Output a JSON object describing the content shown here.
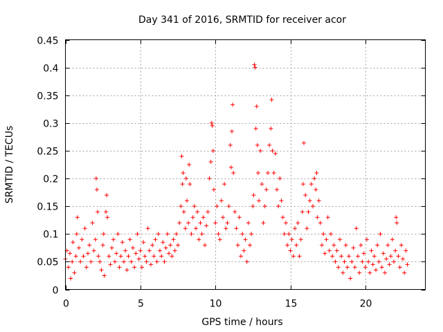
{
  "chart_data": {
    "type": "scatter",
    "title": "Day 341 of 2016, SRMTID for receiver acor",
    "xlabel": "GPS time / hours",
    "ylabel": "SRMTID / TECUs",
    "xlim": [
      0,
      24
    ],
    "ylim": [
      0,
      0.45
    ],
    "xticks": [
      0,
      5,
      10,
      15,
      20
    ],
    "yticks": [
      0,
      0.05,
      0.1,
      0.15,
      0.2,
      0.25,
      0.3,
      0.35,
      0.4,
      0.45
    ],
    "xtick_labels": [
      "0",
      "5",
      "10",
      "15",
      "20"
    ],
    "ytick_labels": [
      "0",
      "0.05",
      "0.1",
      "0.15",
      "0.2",
      "0.25",
      "0.3",
      "0.35",
      "0.4",
      "0.45"
    ],
    "grid": true,
    "marker": "+",
    "color": "#ff0000",
    "series": [
      {
        "name": "SRMTID",
        "points": [
          [
            0.0,
            0.055
          ],
          [
            0.1,
            0.07
          ],
          [
            0.2,
            0.04
          ],
          [
            0.3,
            0.065
          ],
          [
            0.35,
            0.02
          ],
          [
            0.45,
            0.05
          ],
          [
            0.5,
            0.085
          ],
          [
            0.6,
            0.03
          ],
          [
            0.7,
            0.06
          ],
          [
            0.75,
            0.1
          ],
          [
            0.8,
            0.13
          ],
          [
            0.9,
            0.075
          ],
          [
            1.0,
            0.05
          ],
          [
            1.1,
            0.09
          ],
          [
            1.2,
            0.06
          ],
          [
            1.3,
            0.11
          ],
          [
            1.4,
            0.04
          ],
          [
            1.5,
            0.065
          ],
          [
            1.6,
            0.08
          ],
          [
            1.7,
            0.05
          ],
          [
            1.8,
            0.12
          ],
          [
            1.9,
            0.07
          ],
          [
            2.0,
            0.09
          ],
          [
            2.05,
            0.2
          ],
          [
            2.1,
            0.18
          ],
          [
            2.15,
            0.14
          ],
          [
            2.2,
            0.06
          ],
          [
            2.3,
            0.05
          ],
          [
            2.4,
            0.035
          ],
          [
            2.5,
            0.08
          ],
          [
            2.55,
            0.1
          ],
          [
            2.6,
            0.025
          ],
          [
            2.7,
            0.14
          ],
          [
            2.75,
            0.17
          ],
          [
            2.8,
            0.13
          ],
          [
            2.9,
            0.06
          ],
          [
            3.0,
            0.045
          ],
          [
            3.1,
            0.075
          ],
          [
            3.2,
            0.09
          ],
          [
            3.3,
            0.05
          ],
          [
            3.4,
            0.065
          ],
          [
            3.5,
            0.1
          ],
          [
            3.6,
            0.04
          ],
          [
            3.7,
            0.06
          ],
          [
            3.8,
            0.085
          ],
          [
            3.9,
            0.05
          ],
          [
            4.0,
            0.07
          ],
          [
            4.1,
            0.035
          ],
          [
            4.2,
            0.06
          ],
          [
            4.3,
            0.09
          ],
          [
            4.4,
            0.05
          ],
          [
            4.5,
            0.075
          ],
          [
            4.6,
            0.04
          ],
          [
            4.7,
            0.065
          ],
          [
            4.8,
            0.1
          ],
          [
            4.9,
            0.055
          ],
          [
            5.0,
            0.07
          ],
          [
            5.1,
            0.04
          ],
          [
            5.2,
            0.085
          ],
          [
            5.3,
            0.06
          ],
          [
            5.4,
            0.05
          ],
          [
            5.5,
            0.11
          ],
          [
            5.6,
            0.07
          ],
          [
            5.7,
            0.045
          ],
          [
            5.8,
            0.08
          ],
          [
            5.9,
            0.06
          ],
          [
            6.0,
            0.09
          ],
          [
            6.1,
            0.05
          ],
          [
            6.2,
            0.1
          ],
          [
            6.3,
            0.07
          ],
          [
            6.4,
            0.06
          ],
          [
            6.5,
            0.085
          ],
          [
            6.6,
            0.05
          ],
          [
            6.7,
            0.075
          ],
          [
            6.8,
            0.1
          ],
          [
            6.9,
            0.065
          ],
          [
            7.0,
            0.08
          ],
          [
            7.1,
            0.06
          ],
          [
            7.2,
            0.09
          ],
          [
            7.3,
            0.07
          ],
          [
            7.4,
            0.1
          ],
          [
            7.5,
            0.08
          ],
          [
            7.6,
            0.12
          ],
          [
            7.7,
            0.15
          ],
          [
            7.75,
            0.24
          ],
          [
            7.8,
            0.19
          ],
          [
            7.85,
            0.21
          ],
          [
            7.9,
            0.14
          ],
          [
            8.0,
            0.11
          ],
          [
            8.05,
            0.2
          ],
          [
            8.1,
            0.16
          ],
          [
            8.2,
            0.12
          ],
          [
            8.25,
            0.225
          ],
          [
            8.3,
            0.19
          ],
          [
            8.4,
            0.1
          ],
          [
            8.5,
            0.13
          ],
          [
            8.6,
            0.15
          ],
          [
            8.7,
            0.11
          ],
          [
            8.8,
            0.14
          ],
          [
            8.9,
            0.09
          ],
          [
            9.0,
            0.12
          ],
          [
            9.1,
            0.1
          ],
          [
            9.2,
            0.13
          ],
          [
            9.3,
            0.08
          ],
          [
            9.4,
            0.115
          ],
          [
            9.5,
            0.14
          ],
          [
            9.6,
            0.2
          ],
          [
            9.7,
            0.23
          ],
          [
            9.75,
            0.3
          ],
          [
            9.8,
            0.295
          ],
          [
            9.85,
            0.25
          ],
          [
            9.9,
            0.18
          ],
          [
            10.0,
            0.12
          ],
          [
            10.1,
            0.15
          ],
          [
            10.2,
            0.1
          ],
          [
            10.3,
            0.09
          ],
          [
            10.4,
            0.16
          ],
          [
            10.5,
            0.13
          ],
          [
            10.6,
            0.19
          ],
          [
            10.7,
            0.11
          ],
          [
            10.8,
            0.12
          ],
          [
            10.9,
            0.15
          ],
          [
            11.0,
            0.26
          ],
          [
            11.05,
            0.22
          ],
          [
            11.1,
            0.285
          ],
          [
            11.15,
            0.333
          ],
          [
            11.2,
            0.21
          ],
          [
            11.3,
            0.14
          ],
          [
            11.4,
            0.11
          ],
          [
            11.5,
            0.08
          ],
          [
            11.6,
            0.13
          ],
          [
            11.7,
            0.06
          ],
          [
            11.8,
            0.1
          ],
          [
            11.9,
            0.07
          ],
          [
            12.0,
            0.09
          ],
          [
            12.1,
            0.05
          ],
          [
            12.2,
            0.12
          ],
          [
            12.3,
            0.08
          ],
          [
            12.4,
            0.1
          ],
          [
            12.5,
            0.15
          ],
          [
            12.55,
            0.17
          ],
          [
            12.6,
            0.405
          ],
          [
            12.65,
            0.4
          ],
          [
            12.7,
            0.29
          ],
          [
            12.75,
            0.33
          ],
          [
            12.8,
            0.26
          ],
          [
            12.85,
            0.21
          ],
          [
            12.9,
            0.16
          ],
          [
            13.0,
            0.25
          ],
          [
            13.1,
            0.19
          ],
          [
            13.2,
            0.12
          ],
          [
            13.3,
            0.15
          ],
          [
            13.4,
            0.18
          ],
          [
            13.5,
            0.21
          ],
          [
            13.6,
            0.26
          ],
          [
            13.7,
            0.29
          ],
          [
            13.75,
            0.342
          ],
          [
            13.8,
            0.25
          ],
          [
            13.9,
            0.21
          ],
          [
            14.0,
            0.245
          ],
          [
            14.1,
            0.18
          ],
          [
            14.2,
            0.15
          ],
          [
            14.3,
            0.2
          ],
          [
            14.4,
            0.16
          ],
          [
            14.5,
            0.13
          ],
          [
            14.6,
            0.1
          ],
          [
            14.7,
            0.12
          ],
          [
            14.8,
            0.08
          ],
          [
            14.9,
            0.1
          ],
          [
            15.0,
            0.07
          ],
          [
            15.1,
            0.09
          ],
          [
            15.2,
            0.06
          ],
          [
            15.3,
            0.11
          ],
          [
            15.4,
            0.08
          ],
          [
            15.5,
            0.12
          ],
          [
            15.6,
            0.06
          ],
          [
            15.7,
            0.09
          ],
          [
            15.8,
            0.14
          ],
          [
            15.85,
            0.19
          ],
          [
            15.9,
            0.264
          ],
          [
            16.0,
            0.17
          ],
          [
            16.1,
            0.11
          ],
          [
            16.2,
            0.14
          ],
          [
            16.3,
            0.16
          ],
          [
            16.4,
            0.19
          ],
          [
            16.5,
            0.15
          ],
          [
            16.6,
            0.2
          ],
          [
            16.7,
            0.18
          ],
          [
            16.75,
            0.21
          ],
          [
            16.8,
            0.13
          ],
          [
            16.9,
            0.16
          ],
          [
            17.0,
            0.12
          ],
          [
            17.1,
            0.08
          ],
          [
            17.2,
            0.1
          ],
          [
            17.3,
            0.065
          ],
          [
            17.4,
            0.09
          ],
          [
            17.5,
            0.13
          ],
          [
            17.6,
            0.07
          ],
          [
            17.7,
            0.1
          ],
          [
            17.8,
            0.06
          ],
          [
            17.9,
            0.08
          ],
          [
            18.0,
            0.05
          ],
          [
            18.1,
            0.07
          ],
          [
            18.2,
            0.04
          ],
          [
            18.3,
            0.09
          ],
          [
            18.4,
            0.06
          ],
          [
            18.5,
            0.03
          ],
          [
            18.6,
            0.05
          ],
          [
            18.7,
            0.08
          ],
          [
            18.8,
            0.04
          ],
          [
            18.9,
            0.06
          ],
          [
            19.0,
            0.02
          ],
          [
            19.1,
            0.05
          ],
          [
            19.2,
            0.075
          ],
          [
            19.3,
            0.04
          ],
          [
            19.4,
            0.11
          ],
          [
            19.5,
            0.06
          ],
          [
            19.6,
            0.03
          ],
          [
            19.7,
            0.08
          ],
          [
            19.8,
            0.05
          ],
          [
            19.9,
            0.065
          ],
          [
            20.0,
            0.04
          ],
          [
            20.1,
            0.09
          ],
          [
            20.2,
            0.05
          ],
          [
            20.3,
            0.03
          ],
          [
            20.4,
            0.07
          ],
          [
            20.5,
            0.045
          ],
          [
            20.6,
            0.06
          ],
          [
            20.7,
            0.035
          ],
          [
            20.8,
            0.08
          ],
          [
            20.9,
            0.05
          ],
          [
            21.0,
            0.1
          ],
          [
            21.1,
            0.04
          ],
          [
            21.2,
            0.065
          ],
          [
            21.3,
            0.03
          ],
          [
            21.4,
            0.055
          ],
          [
            21.5,
            0.08
          ],
          [
            21.6,
            0.045
          ],
          [
            21.7,
            0.06
          ],
          [
            21.8,
            0.09
          ],
          [
            21.9,
            0.05
          ],
          [
            22.0,
            0.07
          ],
          [
            22.05,
            0.13
          ],
          [
            22.1,
            0.12
          ],
          [
            22.2,
            0.06
          ],
          [
            22.3,
            0.04
          ],
          [
            22.4,
            0.08
          ],
          [
            22.5,
            0.055
          ],
          [
            22.6,
            0.03
          ],
          [
            22.7,
            0.07
          ],
          [
            22.8,
            0.045
          ]
        ]
      }
    ]
  }
}
